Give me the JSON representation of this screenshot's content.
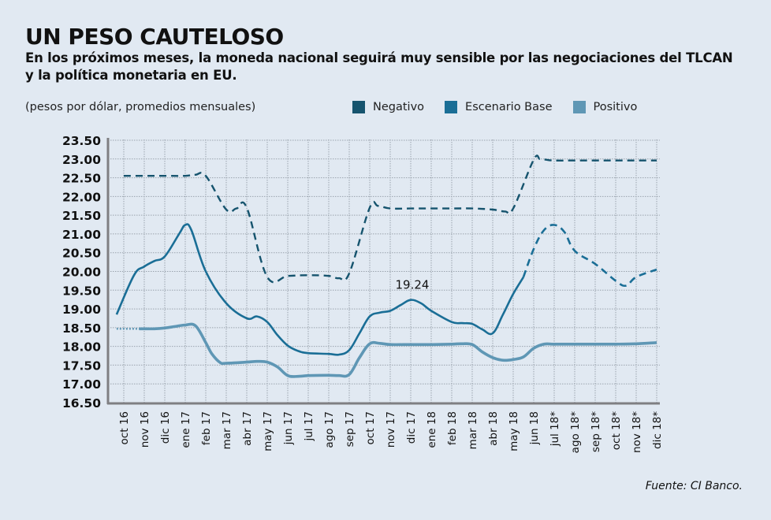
{
  "header": {
    "title": "UN PESO CAUTELOSO",
    "subtitle": "En los próximos meses, la moneda nacional seguirá muy sensible por las negociaciones del TLCAN y la política monetaria en EU."
  },
  "footer": {
    "source": "Fuente: CI Banco."
  },
  "colors": {
    "background": "#e1e9f2",
    "negativo": "#16546e",
    "base": "#1a6e96",
    "positivo": "#5f97b5",
    "axis": "#7f7f82",
    "grid": "#9aa3ad"
  },
  "chart_data": {
    "type": "line",
    "title": "UN PESO CAUTELOSO",
    "subtitle": "En los próximos meses, la moneda nacional seguirá muy sensible por las negociaciones del TLCAN y la política monetaria en EU.",
    "ylabel": "(pesos por dólar, promedios mensuales)",
    "xlabel": "",
    "ylim": [
      16.5,
      23.5
    ],
    "yticks": [
      "23.50",
      "23.00",
      "22.50",
      "22.00",
      "21.50",
      "21.00",
      "20.50",
      "20.00",
      "19.50",
      "19.00",
      "18.50",
      "18.00",
      "17.50",
      "17.00",
      "16.50"
    ],
    "ytick_values": [
      23.5,
      23.0,
      22.5,
      22.0,
      21.5,
      21.0,
      20.5,
      20.0,
      19.5,
      19.0,
      18.5,
      18.0,
      17.5,
      17.0,
      16.5
    ],
    "grid": true,
    "legend_position": "top-right",
    "categories": [
      "oct 16",
      "nov 16",
      "dic 16",
      "ene 17",
      "feb 17",
      "mar 17",
      "abr 17",
      "may 17",
      "jun 17",
      "jul 17",
      "ago 17",
      "sep 17",
      "oct 17",
      "nov 17",
      "dic 17",
      "ene 18",
      "feb 18",
      "mar 18",
      "abr 18",
      "may 18",
      "jun 18",
      "jul 18*",
      "ago 18*",
      "sep 18*",
      "oct 18*",
      "nov 18*",
      "dic 18*"
    ],
    "series": [
      {
        "name": "Negativo",
        "style": "dashed",
        "x": [
          0,
          1,
          2,
          3,
          3.5,
          4,
          5,
          5.5,
          6,
          7,
          8,
          9,
          10,
          10.5,
          11,
          12,
          12.4,
          13,
          14,
          15,
          16,
          17,
          18,
          18.6,
          19,
          20,
          20.3,
          20.6,
          21,
          22,
          23,
          24,
          25,
          26
        ],
        "values": [
          22.55,
          22.55,
          22.55,
          22.55,
          22.58,
          22.55,
          21.65,
          21.68,
          21.7,
          19.85,
          19.88,
          19.9,
          19.88,
          19.82,
          19.95,
          21.7,
          21.75,
          21.68,
          21.68,
          21.68,
          21.68,
          21.68,
          21.65,
          21.6,
          21.68,
          22.98,
          23.0,
          22.98,
          22.96,
          22.96,
          22.96,
          22.96,
          22.96,
          22.96
        ]
      },
      {
        "name": "Escenario Base",
        "style": "solid-then-dashed",
        "forecast_from_index": 19.5,
        "x": [
          -0.35,
          0.5,
          1,
          1.5,
          2,
          2.7,
          3,
          3.3,
          4,
          5,
          6,
          6.5,
          7,
          7.5,
          8,
          8.5,
          9,
          10,
          10.5,
          11,
          11.5,
          12,
          12.5,
          13,
          13.5,
          14,
          14.5,
          15,
          16,
          16.5,
          17,
          17.5,
          18,
          18.5,
          19,
          19.5,
          20,
          20.5,
          21,
          21.5,
          22,
          23,
          24,
          24.5,
          25,
          26
        ],
        "values": [
          18.85,
          19.9,
          20.13,
          20.28,
          20.4,
          21.0,
          21.24,
          21.1,
          20.0,
          19.15,
          18.75,
          18.8,
          18.65,
          18.3,
          18.02,
          17.88,
          17.82,
          17.8,
          17.78,
          17.9,
          18.35,
          18.8,
          18.9,
          18.95,
          19.1,
          19.24,
          19.15,
          18.95,
          18.65,
          18.62,
          18.6,
          18.45,
          18.35,
          18.85,
          19.4,
          19.85,
          20.6,
          21.1,
          21.24,
          21.05,
          20.55,
          20.2,
          19.75,
          19.62,
          19.85,
          20.05
        ]
      },
      {
        "name": "Positivo",
        "style": "dotted-then-solid",
        "solid_from_index": 0.75,
        "x": [
          -0.35,
          0.75,
          1,
          1.5,
          2,
          2.5,
          3,
          3.5,
          4,
          4.3,
          4.7,
          5,
          6,
          6.5,
          7,
          7.5,
          8,
          8.5,
          9,
          10,
          10.5,
          11,
          11.5,
          12,
          12.5,
          13,
          14,
          15,
          16,
          16.5,
          17,
          17.5,
          18,
          18.5,
          19,
          19.5,
          20,
          20.5,
          21,
          22,
          23,
          24,
          25,
          26
        ],
        "values": [
          18.47,
          18.47,
          18.47,
          18.47,
          18.49,
          18.53,
          18.57,
          18.55,
          18.1,
          17.8,
          17.57,
          17.55,
          17.58,
          17.6,
          17.58,
          17.45,
          17.22,
          17.2,
          17.22,
          17.23,
          17.22,
          17.25,
          17.7,
          18.07,
          18.08,
          18.05,
          18.05,
          18.05,
          18.06,
          18.07,
          18.05,
          17.85,
          17.7,
          17.63,
          17.65,
          17.72,
          17.95,
          18.06,
          18.06,
          18.06,
          18.06,
          18.06,
          18.07,
          18.1
        ]
      }
    ],
    "annotations": [
      {
        "text": "19.24",
        "x_category": "dic 17",
        "value": 19.24
      }
    ],
    "legend": [
      "Negativo",
      "Escenario Base",
      "Positivo"
    ]
  }
}
